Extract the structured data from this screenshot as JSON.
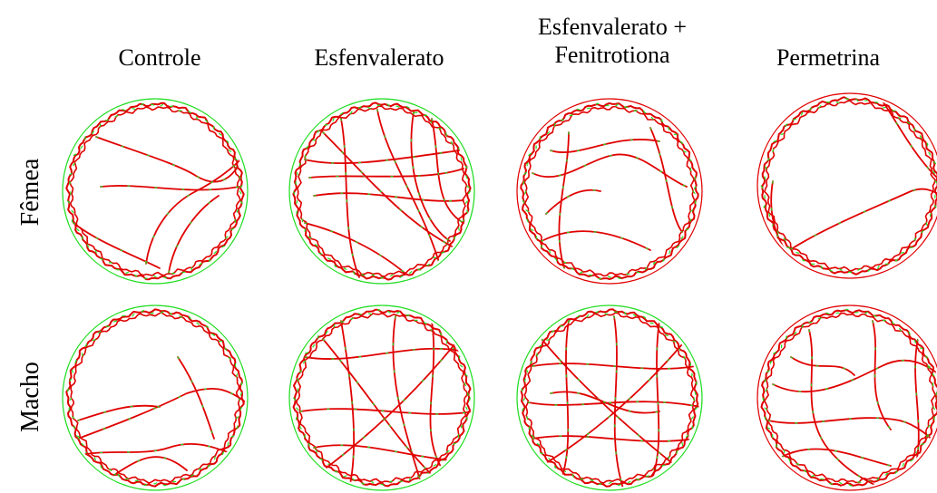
{
  "columns": [
    {
      "lines": [
        "Controle"
      ]
    },
    {
      "lines": [
        "Esfenvalerato"
      ]
    },
    {
      "lines": [
        "Esfenvalerato +",
        "Fenitrotiona"
      ]
    },
    {
      "lines": [
        "Permetrina"
      ]
    }
  ],
  "rows": [
    "Fêmea",
    "Macho"
  ],
  "colors": {
    "track": "#e00000",
    "track_highlight": "#22dd22",
    "arena_green": "#22dd22",
    "arena_red": "#e00000"
  },
  "panels": [
    {
      "row": "Fêmea",
      "column": "Controle",
      "arena_color": "green"
    },
    {
      "row": "Fêmea",
      "column": "Esfenvalerato",
      "arena_color": "green"
    },
    {
      "row": "Fêmea",
      "column": "Esfenvalerato + Fenitrotiona",
      "arena_color": "red"
    },
    {
      "row": "Fêmea",
      "column": "Permetrina",
      "arena_color": "red"
    },
    {
      "row": "Macho",
      "column": "Controle",
      "arena_color": "green"
    },
    {
      "row": "Macho",
      "column": "Esfenvalerato",
      "arena_color": "green"
    },
    {
      "row": "Macho",
      "column": "Esfenvalerato + Fenitrotiona",
      "arena_color": "green"
    },
    {
      "row": "Macho",
      "column": "Permetrina",
      "arena_color": "red"
    }
  ]
}
